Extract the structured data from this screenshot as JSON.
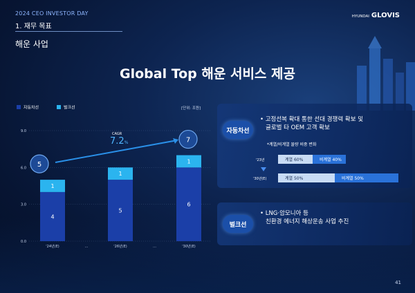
{
  "header": {
    "event": "2024 CEO INVESTOR DAY",
    "section": "1. 재무 목표",
    "subsection": "해운 사업",
    "logo_small": "HYUNDAI",
    "logo": "GLOVIS"
  },
  "title": "Global Top 해운 서비스 제공",
  "page_number": "41",
  "colors": {
    "car_carrier": "#1b3fa8",
    "bulk": "#2bb4ef",
    "accent_arrow": "#2a90e8"
  },
  "chart_data": {
    "type": "bar",
    "stacked": true,
    "categories": [
      "'24년(E)",
      "'26년(E)",
      "'30년(E)"
    ],
    "between_labels": [
      "…",
      "…"
    ],
    "series": [
      {
        "name": "자동차선",
        "values": [
          4,
          5,
          6
        ]
      },
      {
        "name": "벌크선",
        "values": [
          1,
          1,
          1
        ]
      }
    ],
    "totals": [
      5,
      6,
      7
    ],
    "total_bubbles": [
      "5",
      "7"
    ],
    "ylim": [
      0,
      9
    ],
    "yticks": [
      "0.0",
      "3.0",
      "6.0",
      "9.0"
    ],
    "unit": "[단위: 조원]",
    "cagr_label": "CAGR",
    "cagr_value": "7.2",
    "cagr_unit": "%",
    "legend_position": "top-left"
  },
  "car_panel": {
    "tag": "자동차선",
    "text_line1": "• 고정선복 확대 통한 선대 경쟁력 확보 및",
    "text_line2": "글로벌 타 OEM 고객 확보",
    "subtitle": "*계열/비계열 물량 비중 변화",
    "rows": [
      {
        "year": "'23년",
        "affiliate": "계열 60%",
        "non_affiliate": "비계열 40%",
        "affiliate_share": 60
      },
      {
        "year": "'30년(E)",
        "affiliate": "계열 50%",
        "non_affiliate": "비계열 50%",
        "affiliate_share": 50
      }
    ]
  },
  "bulk_panel": {
    "tag": "벌크선",
    "text_line1": "• LNG·암모니아 등",
    "text_line2": "친환경 에너지 해상운송 사업 추진"
  }
}
